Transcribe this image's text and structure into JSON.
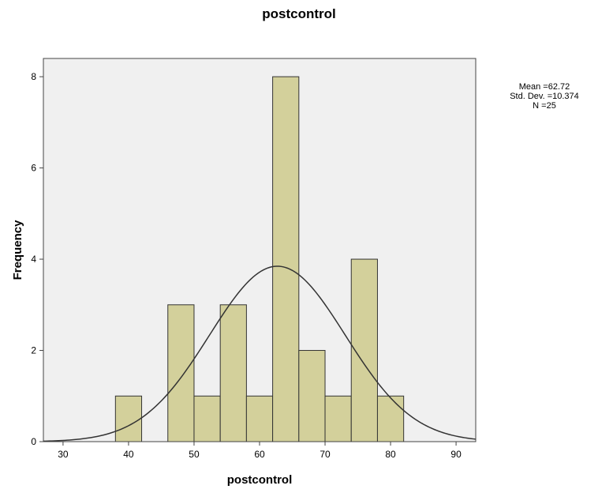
{
  "chart_data": {
    "type": "bar",
    "title": "postcontrol",
    "xlabel": "postcontrol",
    "ylabel": "Frequency",
    "xlim": [
      27,
      93
    ],
    "ylim": [
      0,
      8.4
    ],
    "x_ticks": [
      30,
      40,
      50,
      60,
      70,
      80,
      90
    ],
    "y_ticks": [
      0,
      2,
      4,
      6,
      8
    ],
    "bins": [
      {
        "start": 38,
        "end": 42,
        "value": 1
      },
      {
        "start": 46,
        "end": 50,
        "value": 3
      },
      {
        "start": 50,
        "end": 54,
        "value": 1
      },
      {
        "start": 54,
        "end": 58,
        "value": 3
      },
      {
        "start": 58,
        "end": 62,
        "value": 1
      },
      {
        "start": 62,
        "end": 66,
        "value": 8
      },
      {
        "start": 66,
        "end": 70,
        "value": 2
      },
      {
        "start": 70,
        "end": 74,
        "value": 1
      },
      {
        "start": 74,
        "end": 78,
        "value": 4
      },
      {
        "start": 78,
        "end": 82,
        "value": 1
      }
    ],
    "normal_curve": {
      "mean": 62.72,
      "sd": 10.374,
      "n": 25,
      "bin_width": 4
    },
    "stats": {
      "mean_label": "Mean =62.72",
      "sd_label": "Std. Dev. =10.374",
      "n_label": "N =25"
    },
    "grid": false,
    "colors": {
      "bar_fill": "#d3d09b",
      "bar_stroke": "#333333",
      "plot_background": "#f0f0f0",
      "curve": "#333333"
    }
  }
}
